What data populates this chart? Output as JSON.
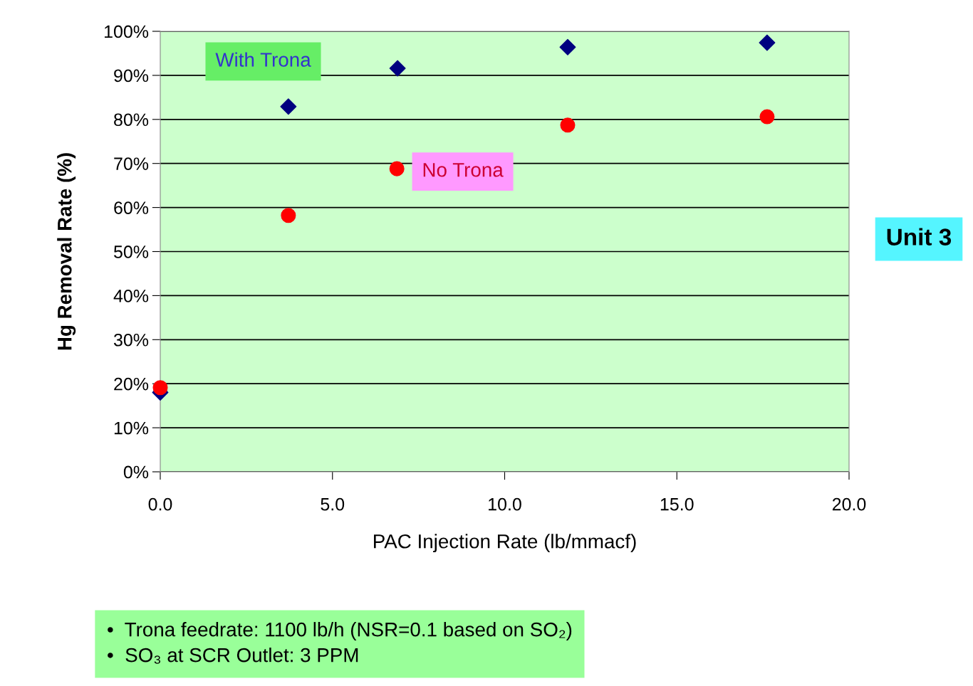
{
  "chart_data": {
    "type": "scatter",
    "xlabel": "PAC Injection Rate (lb/mmacf)",
    "ylabel": "Hg Removal Rate (%)",
    "series": [
      {
        "name": "With Trona",
        "color": "#000080",
        "marker": "diamond",
        "x": [
          0,
          3.72,
          6.89,
          11.83,
          17.62
        ],
        "values": [
          18,
          82.9,
          91.6,
          96.4,
          97.4
        ]
      },
      {
        "name": "No Trona",
        "color": "#ff0000",
        "marker": "circle",
        "x": [
          0,
          3.72,
          6.87,
          11.83,
          17.62
        ],
        "values": [
          19.1,
          58.2,
          68.8,
          78.7,
          80.6
        ]
      }
    ],
    "xlim": [
      0,
      20
    ],
    "ylim": [
      0,
      100
    ],
    "xticks": [
      {
        "value": 0,
        "label": "0.0"
      },
      {
        "value": 5,
        "label": "5.0"
      },
      {
        "value": 10,
        "label": "10.0"
      },
      {
        "value": 15,
        "label": "15.0"
      },
      {
        "value": 20,
        "label": "20.0"
      }
    ],
    "yticks": [
      {
        "value": 0,
        "label": "0%"
      },
      {
        "value": 10,
        "label": "10%"
      },
      {
        "value": 20,
        "label": "20%"
      },
      {
        "value": 30,
        "label": "30%"
      },
      {
        "value": 40,
        "label": "40%"
      },
      {
        "value": 50,
        "label": "50%"
      },
      {
        "value": 60,
        "label": "60%"
      },
      {
        "value": 70,
        "label": "70%"
      },
      {
        "value": 80,
        "label": "80%"
      },
      {
        "value": 90,
        "label": "90%"
      },
      {
        "value": 100,
        "label": "100%"
      }
    ],
    "grid": "y",
    "annotations": [
      "Unit 3",
      "•  Trona feedrate: 1100 lb/h (NSR=0.1 based on SO₂)\n•  SO₃ at SCR Outlet: 3 PPM"
    ]
  }
}
